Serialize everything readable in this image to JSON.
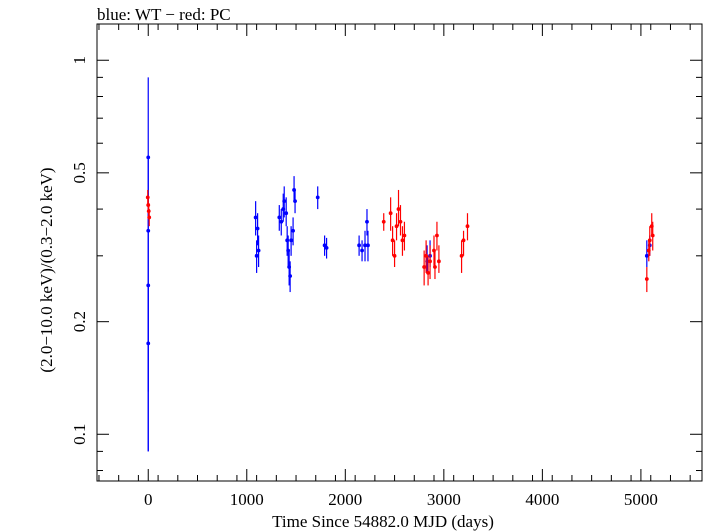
{
  "chart_data": {
    "type": "scatter",
    "title": "blue: WT − red: PC",
    "xlabel": "Time Since 54882.0 MJD (days)",
    "ylabel": "(2.0−10.0 keV)/(0.3−2.0 keV)",
    "xlim": [
      -520,
      5620
    ],
    "ylim": [
      0.075,
      1.25
    ],
    "yscale": "log",
    "xticks": [
      0,
      1000,
      2000,
      3000,
      4000,
      5000
    ],
    "yticks": [
      0.1,
      0.2,
      0.5,
      1
    ],
    "yticklabels": [
      "0.1",
      "0.2",
      "0.5",
      "1"
    ],
    "grid": false,
    "series": [
      {
        "name": "WT",
        "color": "#0000ff",
        "points": [
          {
            "x": 0,
            "y": 0.55,
            "lo": 0.35,
            "hi": 0.9
          },
          {
            "x": 0,
            "y": 0.35,
            "lo": 0.13,
            "hi": 0.55
          },
          {
            "x": 0,
            "y": 0.25,
            "lo": 0.09,
            "hi": 0.35
          },
          {
            "x": 0,
            "y": 0.175,
            "lo": 0.09,
            "hi": 0.25
          },
          {
            "x": 1090,
            "y": 0.38,
            "lo": 0.34,
            "hi": 0.42
          },
          {
            "x": 1100,
            "y": 0.3,
            "lo": 0.27,
            "hi": 0.33
          },
          {
            "x": 1110,
            "y": 0.355,
            "lo": 0.32,
            "hi": 0.39
          },
          {
            "x": 1120,
            "y": 0.31,
            "lo": 0.28,
            "hi": 0.34
          },
          {
            "x": 1330,
            "y": 0.38,
            "lo": 0.35,
            "hi": 0.41
          },
          {
            "x": 1350,
            "y": 0.37,
            "lo": 0.34,
            "hi": 0.4
          },
          {
            "x": 1370,
            "y": 0.4,
            "lo": 0.37,
            "hi": 0.44
          },
          {
            "x": 1380,
            "y": 0.42,
            "lo": 0.38,
            "hi": 0.46
          },
          {
            "x": 1400,
            "y": 0.39,
            "lo": 0.36,
            "hi": 0.43
          },
          {
            "x": 1410,
            "y": 0.33,
            "lo": 0.3,
            "hi": 0.36
          },
          {
            "x": 1420,
            "y": 0.31,
            "lo": 0.28,
            "hi": 0.34
          },
          {
            "x": 1430,
            "y": 0.28,
            "lo": 0.25,
            "hi": 0.31
          },
          {
            "x": 1440,
            "y": 0.265,
            "lo": 0.24,
            "hi": 0.29
          },
          {
            "x": 1450,
            "y": 0.33,
            "lo": 0.3,
            "hi": 0.36
          },
          {
            "x": 1470,
            "y": 0.35,
            "lo": 0.32,
            "hi": 0.38
          },
          {
            "x": 1480,
            "y": 0.45,
            "lo": 0.42,
            "hi": 0.49
          },
          {
            "x": 1490,
            "y": 0.42,
            "lo": 0.39,
            "hi": 0.45
          },
          {
            "x": 1720,
            "y": 0.43,
            "lo": 0.4,
            "hi": 0.46
          },
          {
            "x": 1790,
            "y": 0.32,
            "lo": 0.3,
            "hi": 0.34
          },
          {
            "x": 1810,
            "y": 0.315,
            "lo": 0.295,
            "hi": 0.335
          },
          {
            "x": 2140,
            "y": 0.32,
            "lo": 0.3,
            "hi": 0.34
          },
          {
            "x": 2170,
            "y": 0.31,
            "lo": 0.29,
            "hi": 0.33
          },
          {
            "x": 2200,
            "y": 0.32,
            "lo": 0.29,
            "hi": 0.35
          },
          {
            "x": 2220,
            "y": 0.37,
            "lo": 0.34,
            "hi": 0.4
          },
          {
            "x": 2230,
            "y": 0.32,
            "lo": 0.29,
            "hi": 0.35
          },
          {
            "x": 2830,
            "y": 0.29,
            "lo": 0.27,
            "hi": 0.32
          },
          {
            "x": 2860,
            "y": 0.3,
            "lo": 0.28,
            "hi": 0.33
          },
          {
            "x": 5060,
            "y": 0.3,
            "lo": 0.28,
            "hi": 0.33
          },
          {
            "x": 5090,
            "y": 0.32,
            "lo": 0.3,
            "hi": 0.34
          }
        ]
      },
      {
        "name": "PC",
        "color": "#ff0000",
        "points": [
          {
            "x": -5,
            "y": 0.43,
            "lo": 0.41,
            "hi": 0.45
          },
          {
            "x": 0,
            "y": 0.41,
            "lo": 0.39,
            "hi": 0.43
          },
          {
            "x": 5,
            "y": 0.395,
            "lo": 0.375,
            "hi": 0.415
          },
          {
            "x": 10,
            "y": 0.38,
            "lo": 0.36,
            "hi": 0.4
          },
          {
            "x": 2390,
            "y": 0.37,
            "lo": 0.35,
            "hi": 0.39
          },
          {
            "x": 2460,
            "y": 0.39,
            "lo": 0.35,
            "hi": 0.43
          },
          {
            "x": 2480,
            "y": 0.33,
            "lo": 0.3,
            "hi": 0.36
          },
          {
            "x": 2500,
            "y": 0.3,
            "lo": 0.28,
            "hi": 0.33
          },
          {
            "x": 2520,
            "y": 0.36,
            "lo": 0.33,
            "hi": 0.39
          },
          {
            "x": 2540,
            "y": 0.4,
            "lo": 0.36,
            "hi": 0.45
          },
          {
            "x": 2560,
            "y": 0.37,
            "lo": 0.34,
            "hi": 0.41
          },
          {
            "x": 2580,
            "y": 0.33,
            "lo": 0.3,
            "hi": 0.36
          },
          {
            "x": 2600,
            "y": 0.34,
            "lo": 0.31,
            "hi": 0.37
          },
          {
            "x": 2800,
            "y": 0.28,
            "lo": 0.25,
            "hi": 0.31
          },
          {
            "x": 2820,
            "y": 0.3,
            "lo": 0.27,
            "hi": 0.33
          },
          {
            "x": 2840,
            "y": 0.27,
            "lo": 0.25,
            "hi": 0.3
          },
          {
            "x": 2860,
            "y": 0.29,
            "lo": 0.26,
            "hi": 0.32
          },
          {
            "x": 2900,
            "y": 0.31,
            "lo": 0.28,
            "hi": 0.34
          },
          {
            "x": 2910,
            "y": 0.28,
            "lo": 0.26,
            "hi": 0.31
          },
          {
            "x": 2930,
            "y": 0.34,
            "lo": 0.31,
            "hi": 0.37
          },
          {
            "x": 2950,
            "y": 0.29,
            "lo": 0.27,
            "hi": 0.32
          },
          {
            "x": 3180,
            "y": 0.3,
            "lo": 0.27,
            "hi": 0.33
          },
          {
            "x": 3200,
            "y": 0.33,
            "lo": 0.3,
            "hi": 0.35
          },
          {
            "x": 3240,
            "y": 0.36,
            "lo": 0.33,
            "hi": 0.39
          },
          {
            "x": 5060,
            "y": 0.26,
            "lo": 0.24,
            "hi": 0.28
          },
          {
            "x": 5080,
            "y": 0.31,
            "lo": 0.29,
            "hi": 0.33
          },
          {
            "x": 5090,
            "y": 0.33,
            "lo": 0.3,
            "hi": 0.36
          },
          {
            "x": 5110,
            "y": 0.36,
            "lo": 0.34,
            "hi": 0.39
          },
          {
            "x": 5120,
            "y": 0.34,
            "lo": 0.31,
            "hi": 0.37
          }
        ]
      }
    ]
  }
}
